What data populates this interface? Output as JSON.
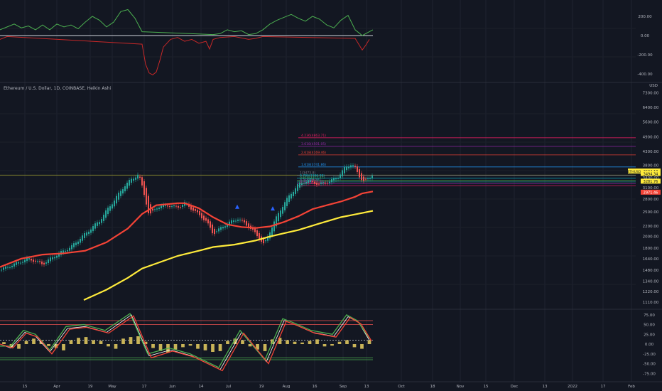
{
  "chart_data": [
    {
      "type": "line",
      "panel": "upper-oscillator",
      "y_ticks": [
        "200.00",
        "0.00",
        "-200.00",
        "-400.00"
      ],
      "ylim": [
        -430,
        260
      ],
      "zero_line": true,
      "series": [
        {
          "color": "#4caf50",
          "role": "above-zero",
          "points": [
            [
              0,
              60
            ],
            [
              10,
              90
            ],
            [
              20,
              120
            ],
            [
              30,
              80
            ],
            [
              40,
              100
            ],
            [
              50,
              60
            ],
            [
              60,
              110
            ],
            [
              70,
              60
            ],
            [
              80,
              120
            ],
            [
              90,
              90
            ],
            [
              100,
              110
            ],
            [
              110,
              70
            ],
            [
              120,
              140
            ],
            [
              130,
              200
            ],
            [
              140,
              160
            ],
            [
              150,
              90
            ],
            [
              160,
              140
            ],
            [
              170,
              250
            ],
            [
              180,
              270
            ],
            [
              190,
              180
            ],
            [
              200,
              40
            ],
            [
              300,
              10
            ],
            [
              310,
              20
            ],
            [
              320,
              60
            ],
            [
              330,
              40
            ],
            [
              340,
              50
            ],
            [
              350,
              10
            ],
            [
              360,
              20
            ],
            [
              370,
              60
            ],
            [
              380,
              120
            ],
            [
              390,
              160
            ],
            [
              400,
              190
            ],
            [
              410,
              220
            ],
            [
              420,
              180
            ],
            [
              430,
              150
            ],
            [
              440,
              200
            ],
            [
              450,
              170
            ],
            [
              460,
              110
            ],
            [
              470,
              80
            ],
            [
              480,
              160
            ],
            [
              490,
              210
            ],
            [
              500,
              60
            ],
            [
              510,
              0
            ],
            [
              520,
              40
            ],
            [
              525,
              60
            ]
          ]
        },
        {
          "color": "#c62828",
          "role": "below-zero",
          "points": [
            [
              0,
              -40
            ],
            [
              10,
              -10
            ],
            [
              200,
              -90
            ],
            [
              205,
              -300
            ],
            [
              210,
              -390
            ],
            [
              215,
              -410
            ],
            [
              220,
              -380
            ],
            [
              225,
              -260
            ],
            [
              230,
              -120
            ],
            [
              240,
              -40
            ],
            [
              250,
              -20
            ],
            [
              260,
              -60
            ],
            [
              270,
              -40
            ],
            [
              280,
              -80
            ],
            [
              290,
              -60
            ],
            [
              295,
              -140
            ],
            [
              300,
              -40
            ],
            [
              310,
              -20
            ],
            [
              330,
              -10
            ],
            [
              350,
              -40
            ],
            [
              360,
              -30
            ],
            [
              370,
              -10
            ],
            [
              500,
              -30
            ],
            [
              510,
              -150
            ],
            [
              515,
              -100
            ],
            [
              520,
              -40
            ]
          ]
        }
      ]
    },
    {
      "type": "candlestick",
      "panel": "price",
      "title": "Ethereum / U.S. Dollar, 1D, COINBASE, Heikin Ashi",
      "y_axis_unit": "USD",
      "y_scale": "log",
      "y_ticks": [
        7300,
        6400,
        5600,
        4900,
        4300,
        3800,
        3400,
        3100,
        2800,
        2500,
        2200,
        2000,
        1800,
        1640,
        1480,
        1340,
        1220,
        1110
      ],
      "y_tick_labels": [
        "7300.00",
        "6400.00",
        "5600.00",
        "4900.00",
        "4300.00",
        "3800.00",
        "3400.00",
        "3100.00",
        "2800.00",
        "2500.00",
        "2200.00",
        "2000.00",
        "1800.00",
        "1640.00",
        "1480.00",
        "1340.00",
        "1220.00",
        "1110.00"
      ],
      "x_ticks": [
        "15",
        "Apr",
        "19",
        "May",
        "17",
        "Jun",
        "14",
        "Jul",
        "19",
        "Aug",
        "16",
        "Sep",
        "13",
        "Oct",
        "18",
        "Nov",
        "15",
        "Dec",
        "13",
        "2022",
        "17",
        "Feb"
      ],
      "price_badges": [
        {
          "text": "ETHUSD",
          "value": "3594.18",
          "color": "#ffeb3b"
        },
        {
          "text": "3494.34",
          "color": "#ffeb3b"
        },
        {
          "text": "3281.76",
          "color": "#ffeb3b"
        },
        {
          "text": "2971.46",
          "color": "#f44336"
        }
      ],
      "fib_levels": [
        {
          "label": "4.236(4863.71)",
          "color": "#e91e63"
        },
        {
          "label": "3.618(4501.05)",
          "color": "#9c27b0"
        },
        {
          "label": "2.618(4169.46)",
          "color": "#f44336"
        },
        {
          "label": "1.618(3741.86)",
          "color": "#2196f3"
        },
        {
          "label": "1(3473.8)",
          "color": "#787b86"
        },
        {
          "label": "0.786(3386.08)",
          "color": "#00bcd4"
        },
        {
          "label": "0.618(3317.47)",
          "color": "#4caf50"
        },
        {
          "label": "0.5(3269.28)",
          "color": "#26a69a"
        },
        {
          "label": "0.382(3221.1)",
          "color": "#9c27b0"
        },
        {
          "label": "0.236(3161.52)",
          "color": "#e91e63"
        }
      ],
      "moving_averages": [
        {
          "color": "#f44336",
          "role": "fast-ma",
          "points": [
            [
              0,
              1520
            ],
            [
              30,
              1640
            ],
            [
              60,
              1700
            ],
            [
              90,
              1720
            ],
            [
              120,
              1760
            ],
            [
              150,
              1900
            ],
            [
              180,
              2150
            ],
            [
              200,
              2450
            ],
            [
              220,
              2650
            ],
            [
              250,
              2700
            ],
            [
              260,
              2700
            ],
            [
              280,
              2580
            ],
            [
              300,
              2380
            ],
            [
              320,
              2230
            ],
            [
              340,
              2180
            ],
            [
              360,
              2160
            ],
            [
              380,
              2190
            ],
            [
              400,
              2280
            ],
            [
              420,
              2400
            ],
            [
              440,
              2560
            ],
            [
              460,
              2650
            ],
            [
              480,
              2740
            ],
            [
              500,
              2860
            ],
            [
              510,
              2950
            ],
            [
              525,
              3000
            ]
          ]
        },
        {
          "color": "#ffeb3b",
          "role": "slow-ma",
          "points": [
            [
              118,
              1130
            ],
            [
              150,
              1240
            ],
            [
              180,
              1380
            ],
            [
              200,
              1500
            ],
            [
              220,
              1570
            ],
            [
              250,
              1680
            ],
            [
              280,
              1760
            ],
            [
              300,
              1820
            ],
            [
              330,
              1860
            ],
            [
              360,
              1930
            ],
            [
              380,
              2000
            ],
            [
              400,
              2060
            ],
            [
              420,
              2120
            ],
            [
              450,
              2250
            ],
            [
              480,
              2380
            ],
            [
              500,
              2440
            ],
            [
              525,
              2520
            ]
          ]
        }
      ],
      "markers": [
        "triangle-up",
        "triangle-up"
      ]
    },
    {
      "type": "line",
      "panel": "lower-oscillator",
      "y_ticks": [
        "75.00",
        "50.00",
        "25.00",
        "0.00",
        "-25.00",
        "-50.00",
        "-75.00"
      ],
      "ylim": [
        -85,
        90
      ],
      "reference_lines": [
        60,
        50,
        10,
        -35,
        -40
      ],
      "series": [
        {
          "color": "#ffffff",
          "role": "signal",
          "points": [
            [
              0,
              0
            ],
            [
              15,
              -10
            ],
            [
              35,
              30
            ],
            [
              50,
              20
            ],
            [
              70,
              -20
            ],
            [
              95,
              40
            ],
            [
              120,
              45
            ],
            [
              150,
              30
            ],
            [
              185,
              75
            ],
            [
              210,
              -30
            ],
            [
              240,
              -15
            ],
            [
              270,
              -30
            ],
            [
              310,
              -65
            ],
            [
              340,
              30
            ],
            [
              375,
              -45
            ],
            [
              400,
              60
            ],
            [
              415,
              50
            ],
            [
              440,
              30
            ],
            [
              470,
              20
            ],
            [
              490,
              70
            ],
            [
              505,
              55
            ],
            [
              520,
              10
            ]
          ]
        },
        {
          "color": "#4caf50",
          "role": "fast-line",
          "points": [
            [
              0,
              -5
            ],
            [
              15,
              -5
            ],
            [
              33,
              35
            ],
            [
              50,
              25
            ],
            [
              70,
              -15
            ],
            [
              93,
              45
            ],
            [
              118,
              50
            ],
            [
              148,
              35
            ],
            [
              183,
              78
            ],
            [
              208,
              -25
            ],
            [
              238,
              -10
            ],
            [
              268,
              -25
            ],
            [
              308,
              -60
            ],
            [
              338,
              35
            ],
            [
              373,
              -40
            ],
            [
              398,
              65
            ],
            [
              413,
              55
            ],
            [
              438,
              35
            ],
            [
              468,
              25
            ],
            [
              488,
              75
            ],
            [
              503,
              60
            ],
            [
              520,
              15
            ]
          ]
        },
        {
          "color": "#f44336",
          "role": "slow-line",
          "points": [
            [
              0,
              0
            ],
            [
              18,
              -10
            ],
            [
              37,
              28
            ],
            [
              53,
              18
            ],
            [
              73,
              -25
            ],
            [
              98,
              38
            ],
            [
              122,
              43
            ],
            [
              153,
              28
            ],
            [
              188,
              72
            ],
            [
              213,
              -35
            ],
            [
              243,
              -18
            ],
            [
              273,
              -33
            ],
            [
              313,
              -68
            ],
            [
              343,
              28
            ],
            [
              378,
              -50
            ],
            [
              403,
              58
            ],
            [
              418,
              48
            ],
            [
              443,
              28
            ],
            [
              473,
              18
            ],
            [
              493,
              68
            ],
            [
              508,
              52
            ],
            [
              523,
              8
            ]
          ]
        }
      ],
      "histogram": [
        5,
        -8,
        -12,
        8,
        14,
        10,
        -5,
        -10,
        -16,
        10,
        16,
        18,
        10,
        8,
        -6,
        -12,
        14,
        18,
        20,
        6,
        -10,
        -18,
        -22,
        -14,
        -8,
        -4,
        -12,
        -16,
        -20,
        -18,
        8,
        14,
        10,
        -6,
        -14,
        -18,
        12,
        16,
        10,
        6,
        4,
        8,
        12,
        -6,
        -4,
        6,
        10,
        -8,
        -12,
        10
      ]
    }
  ]
}
